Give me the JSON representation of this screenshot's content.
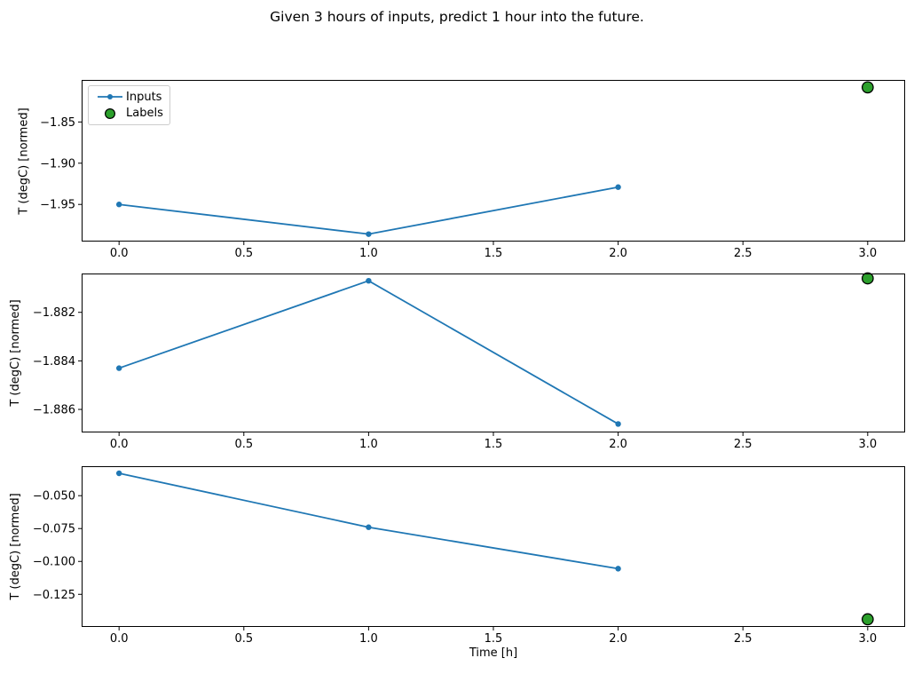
{
  "figure": {
    "title": "Given 3 hours of inputs, predict 1 hour into the future.",
    "xlabel": "Time [h]",
    "ylabel": "T (degC) [normed]",
    "legend": {
      "items": [
        {
          "label": "Inputs",
          "marker": "line-with-dot",
          "color": "#1f77b4"
        },
        {
          "label": "Labels",
          "marker": "circle",
          "fill": "#2ca02c",
          "edge": "#000000"
        }
      ]
    },
    "colors": {
      "inputs_line": "#1f77b4",
      "labels_fill": "#2ca02c",
      "labels_edge": "#000000",
      "spine": "#000000",
      "text": "#000000"
    }
  },
  "chart_data": [
    {
      "type": "line",
      "ylabel": "T (degC) [normed]",
      "xlabel": "",
      "xlim": [
        -0.15,
        3.15
      ],
      "ylim": [
        -1.995,
        -1.799
      ],
      "x_ticks": [
        0.0,
        0.5,
        1.0,
        1.5,
        2.0,
        2.5,
        3.0
      ],
      "x_tick_labels": [
        "0.0",
        "0.5",
        "1.0",
        "1.5",
        "2.0",
        "2.5",
        "3.0"
      ],
      "y_ticks": [
        -1.85,
        -1.9,
        -1.95
      ],
      "y_tick_labels": [
        "−1.85",
        "−1.90",
        "−1.95"
      ],
      "grid": false,
      "legend_position": "upper-left",
      "series": [
        {
          "name": "Inputs",
          "kind": "line+marker",
          "color": "#1f77b4",
          "x": [
            0,
            1,
            2
          ],
          "y": [
            -1.95,
            -1.986,
            -1.929
          ]
        },
        {
          "name": "Labels",
          "kind": "scatter",
          "fill": "#2ca02c",
          "edge": "#000000",
          "x": [
            3
          ],
          "y": [
            -1.808
          ]
        }
      ]
    },
    {
      "type": "line",
      "ylabel": "T (degC) [normed]",
      "xlabel": "",
      "xlim": [
        -0.15,
        3.15
      ],
      "ylim": [
        -1.88695,
        -1.8804
      ],
      "x_ticks": [
        0.0,
        0.5,
        1.0,
        1.5,
        2.0,
        2.5,
        3.0
      ],
      "x_tick_labels": [
        "0.0",
        "0.5",
        "1.0",
        "1.5",
        "2.0",
        "2.5",
        "3.0"
      ],
      "y_ticks": [
        -1.882,
        -1.884,
        -1.886
      ],
      "y_tick_labels": [
        "−1.882",
        "−1.884",
        "−1.886"
      ],
      "grid": false,
      "legend_position": "none",
      "series": [
        {
          "name": "Inputs",
          "kind": "line+marker",
          "color": "#1f77b4",
          "x": [
            0,
            1,
            2
          ],
          "y": [
            -1.8843,
            -1.8807,
            -1.8866
          ]
        },
        {
          "name": "Labels",
          "kind": "scatter",
          "fill": "#2ca02c",
          "edge": "#000000",
          "x": [
            3
          ],
          "y": [
            -1.8806
          ]
        }
      ]
    },
    {
      "type": "line",
      "ylabel": "T (degC) [normed]",
      "xlabel": "Time [h]",
      "xlim": [
        -0.15,
        3.15
      ],
      "ylim": [
        -0.1498,
        -0.0276
      ],
      "x_ticks": [
        0.0,
        0.5,
        1.0,
        1.5,
        2.0,
        2.5,
        3.0
      ],
      "x_tick_labels": [
        "0.0",
        "0.5",
        "1.0",
        "1.5",
        "2.0",
        "2.5",
        "3.0"
      ],
      "y_ticks": [
        -0.05,
        -0.075,
        -0.1,
        -0.125
      ],
      "y_tick_labels": [
        "−0.050",
        "−0.075",
        "−0.100",
        "−0.125"
      ],
      "grid": false,
      "legend_position": "none",
      "series": [
        {
          "name": "Inputs",
          "kind": "line+marker",
          "color": "#1f77b4",
          "x": [
            0,
            1,
            2
          ],
          "y": [
            -0.033,
            -0.074,
            -0.1055
          ]
        },
        {
          "name": "Labels",
          "kind": "scatter",
          "fill": "#2ca02c",
          "edge": "#000000",
          "x": [
            3
          ],
          "y": [
            -0.144
          ]
        }
      ]
    }
  ]
}
